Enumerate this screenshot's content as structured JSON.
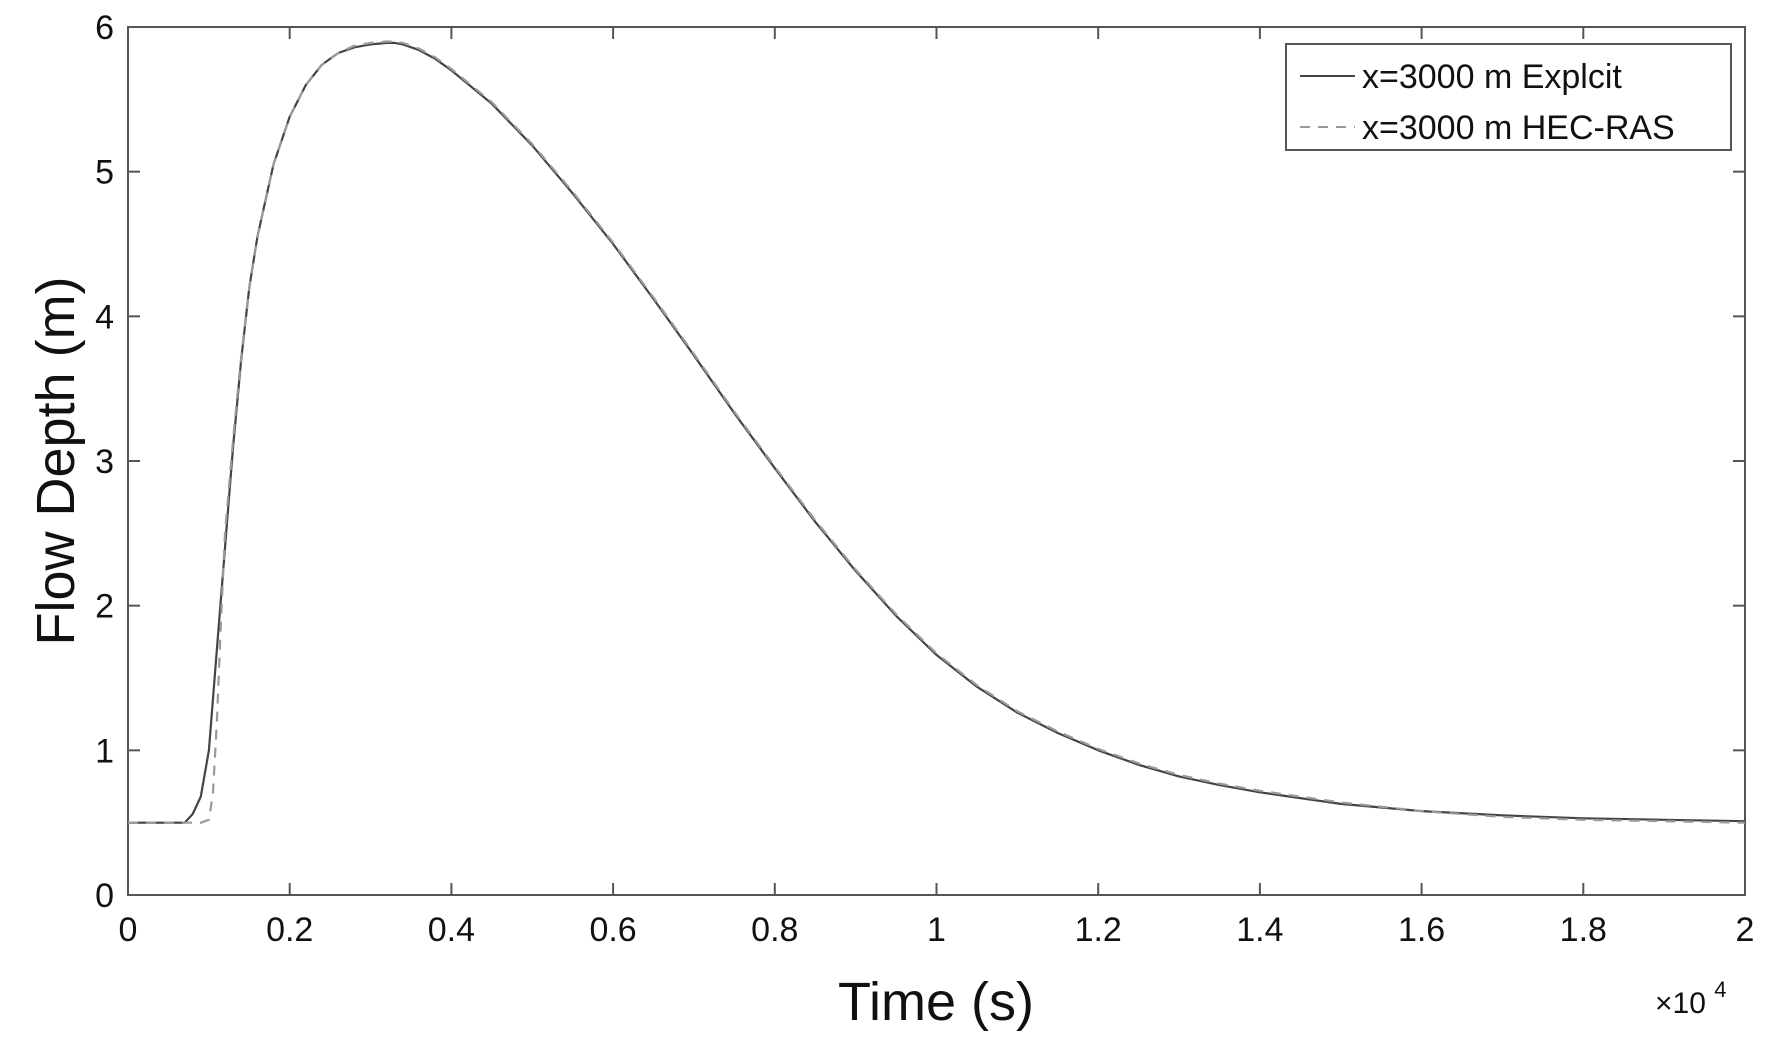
{
  "chart_data": {
    "type": "line",
    "xlabel": "Time (s)",
    "ylabel": "Flow Depth (m)",
    "x_multiplier": {
      "base": "×10",
      "exponent": "4"
    },
    "xlim": [
      0,
      2
    ],
    "ylim": [
      0,
      6
    ],
    "x_ticks": [
      0,
      0.2,
      0.4,
      0.6,
      0.8,
      1,
      1.2,
      1.4,
      1.6,
      1.8,
      2
    ],
    "x_tick_labels": [
      "0",
      "0.2",
      "0.4",
      "0.6",
      "0.8",
      "1",
      "1.2",
      "1.4",
      "1.6",
      "1.8",
      "2"
    ],
    "y_ticks": [
      0,
      1,
      2,
      3,
      4,
      5,
      6
    ],
    "y_tick_labels": [
      "0",
      "1",
      "2",
      "3",
      "4",
      "5",
      "6"
    ],
    "grid": false,
    "legend_position": "top-right",
    "series": [
      {
        "name": "x=3000 m Explcit",
        "style": "solid",
        "color": "#444444",
        "x": [
          0,
          0.06,
          0.07,
          0.08,
          0.09,
          0.1,
          0.11,
          0.12,
          0.13,
          0.14,
          0.15,
          0.16,
          0.18,
          0.2,
          0.22,
          0.24,
          0.26,
          0.28,
          0.3,
          0.32,
          0.33,
          0.34,
          0.36,
          0.38,
          0.4,
          0.45,
          0.5,
          0.55,
          0.6,
          0.65,
          0.7,
          0.75,
          0.8,
          0.85,
          0.9,
          0.95,
          1.0,
          1.05,
          1.1,
          1.15,
          1.2,
          1.25,
          1.3,
          1.35,
          1.4,
          1.45,
          1.5,
          1.6,
          1.7,
          1.8,
          1.9,
          2.0
        ],
        "y": [
          0.5,
          0.5,
          0.5,
          0.56,
          0.68,
          1.0,
          1.7,
          2.4,
          3.1,
          3.7,
          4.2,
          4.55,
          5.05,
          5.38,
          5.6,
          5.74,
          5.82,
          5.86,
          5.88,
          5.89,
          5.89,
          5.88,
          5.84,
          5.78,
          5.7,
          5.47,
          5.18,
          4.85,
          4.5,
          4.12,
          3.73,
          3.33,
          2.95,
          2.58,
          2.24,
          1.93,
          1.66,
          1.44,
          1.26,
          1.12,
          1.0,
          0.9,
          0.82,
          0.76,
          0.71,
          0.67,
          0.63,
          0.58,
          0.55,
          0.53,
          0.52,
          0.51
        ]
      },
      {
        "name": "x=3000 m HEC-RAS",
        "style": "dashed",
        "color": "#9a9a9a",
        "x": [
          0,
          0.08,
          0.09,
          0.1,
          0.105,
          0.11,
          0.115,
          0.12,
          0.13,
          0.14,
          0.15,
          0.16,
          0.18,
          0.2,
          0.22,
          0.24,
          0.26,
          0.28,
          0.3,
          0.32,
          0.33,
          0.34,
          0.36,
          0.38,
          0.4,
          0.45,
          0.5,
          0.55,
          0.6,
          0.65,
          0.7,
          0.75,
          0.8,
          0.85,
          0.9,
          0.95,
          1.0,
          1.05,
          1.1,
          1.15,
          1.2,
          1.25,
          1.3,
          1.35,
          1.4,
          1.45,
          1.5,
          1.6,
          1.7,
          1.8,
          1.9,
          2.0
        ],
        "y": [
          0.5,
          0.5,
          0.5,
          0.52,
          0.7,
          1.2,
          1.9,
          2.5,
          3.15,
          3.72,
          4.2,
          4.55,
          5.05,
          5.38,
          5.6,
          5.74,
          5.82,
          5.87,
          5.89,
          5.9,
          5.9,
          5.89,
          5.85,
          5.79,
          5.71,
          5.48,
          5.19,
          4.86,
          4.51,
          4.13,
          3.74,
          3.34,
          2.96,
          2.59,
          2.25,
          1.94,
          1.67,
          1.45,
          1.27,
          1.13,
          1.01,
          0.91,
          0.83,
          0.77,
          0.72,
          0.68,
          0.64,
          0.58,
          0.54,
          0.52,
          0.51,
          0.5
        ]
      }
    ]
  }
}
